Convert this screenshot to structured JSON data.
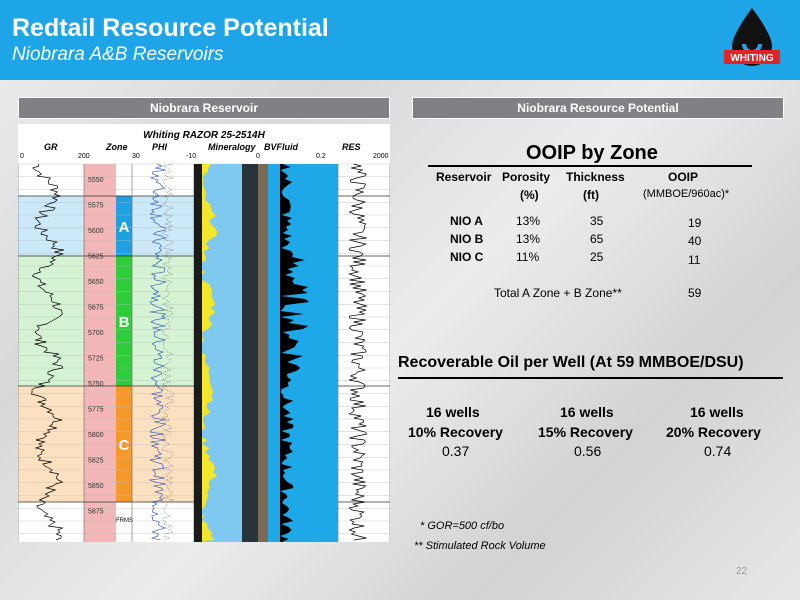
{
  "header": {
    "title": "Redtail Resource Potential",
    "subtitle": "Niobrara A&B Reservoirs",
    "logo_text": "WHITING",
    "color": "#1ea5e8"
  },
  "left_bar": "Niobrara  Reservoir",
  "right_bar": "Niobrara  Resource Potential",
  "log": {
    "title": "Whiting RAZOR 25-2514H",
    "tracks": [
      "GR",
      "Zone",
      "PHI",
      "Mineralogy",
      "BVFluid",
      "RES"
    ],
    "scale_labels": [
      "0",
      "200",
      "30",
      "-10",
      "0",
      "0.2",
      "2000"
    ],
    "depths": [
      "5550",
      "5575",
      "5600",
      "5625",
      "5650",
      "5675",
      "5700",
      "5725",
      "5750",
      "5775",
      "5800",
      "5825",
      "5850",
      "5875"
    ],
    "zones": [
      {
        "label": "A",
        "color": "#1fa0e0"
      },
      {
        "label": "B",
        "color": "#2ecc3a"
      },
      {
        "label": "C",
        "color": "#f59a2a"
      }
    ],
    "marker": "FRMS"
  },
  "ooip": {
    "title": "OOIP by Zone",
    "headers": [
      "Reservoir",
      "Porosity",
      "Thickness",
      "OOIP"
    ],
    "units": [
      "",
      "(%)",
      "(ft)",
      "(MMBOE/960ac)*"
    ],
    "rows": [
      {
        "reservoir": "NIO A",
        "porosity": "13%",
        "thickness": "35",
        "ooip": "19"
      },
      {
        "reservoir": "NIO B",
        "porosity": "13%",
        "thickness": "65",
        "ooip": "40"
      },
      {
        "reservoir": "NIO C",
        "porosity": "11%",
        "thickness": "25",
        "ooip": "11"
      }
    ],
    "total_label": "Total A Zone + B Zone**",
    "total_value": "59"
  },
  "recoverable": {
    "title": "Recoverable Oil per Well (At 59 MMBOE/DSU)",
    "columns": [
      {
        "wells": "16 wells",
        "recovery": "10% Recovery",
        "value": "0.37"
      },
      {
        "wells": "16 wells",
        "recovery": "15% Recovery",
        "value": "0.56"
      },
      {
        "wells": "16 wells",
        "recovery": "20% Recovery",
        "value": "0.74"
      }
    ]
  },
  "footnotes": [
    "*  GOR=500 cf/bo",
    "**  Stimulated Rock Volume"
  ],
  "page_number": "22"
}
